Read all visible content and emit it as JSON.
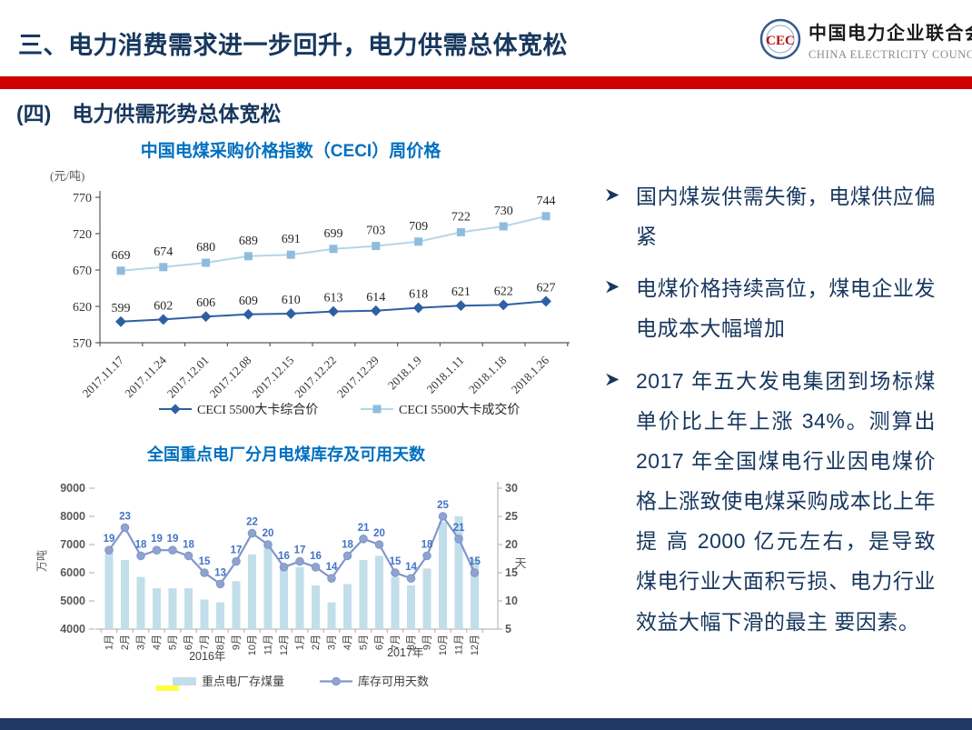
{
  "header": {
    "title": "三、电力消费需求进一步回升，电力供需总体宽松",
    "logo": {
      "monogram": "CEC",
      "org_cn": "中国电力企业联合会",
      "org_en": "CHINA ELECTRICITY COUNCIL"
    }
  },
  "section_heading": "(四)　电力供需形势总体宽松",
  "bullets": [
    "国内煤炭供需失衡，电煤供应偏紧",
    "电煤价格持续高位，煤电企业发电成本大幅增加",
    "2017 年五大发电集团到场标煤单价比上年上涨 34%。测算出2017 年全国煤电行业因电煤价格上涨致使电煤采购成本比上年提 高 2000 亿元左右，是导致煤电行业大面积亏损、电力行业效益大幅下滑的最主 要因素。"
  ],
  "colors": {
    "navy": "#17375E",
    "red": "#CE0000",
    "chart_title_blue": "#0070C0",
    "axis_gray": "#595959",
    "data_label_blue": "#4472C4",
    "bottom_band": "#1F3864",
    "highlight_yellow": "#FFFF3D"
  },
  "chart_data": [
    {
      "type": "line",
      "title": "中国电煤采购价格指数（CECI）周价格",
      "unit_label": "(元/吨)",
      "x": [
        "2017.11.17",
        "2017.11.24",
        "2017.12.01",
        "2017.12.08",
        "2017.12.15",
        "2017.12.22",
        "2017.12.29",
        "2018.1.9",
        "2018.1.11",
        "2018.1.18",
        "2018.1.26"
      ],
      "series": [
        {
          "name": "CECI 5500大卡综合价",
          "marker": "diamond",
          "color": "#2E5FA3",
          "line_color": "#2E5FA3",
          "values": [
            599,
            602,
            606,
            609,
            610,
            613,
            614,
            618,
            621,
            622,
            627
          ]
        },
        {
          "name": "CECI 5500大卡成交价",
          "marker": "square",
          "color": "#8FBCDD",
          "line_color": "#B3D6E8",
          "values": [
            669,
            674,
            680,
            689,
            691,
            699,
            703,
            709,
            722,
            730,
            744
          ]
        }
      ],
      "ylim": [
        570,
        770
      ],
      "yticks": [
        570,
        620,
        670,
        720,
        770
      ],
      "legend_position": "bottom",
      "grid": false
    },
    {
      "type": "combo-bar-line",
      "title": "全国重点电厂分月电煤库存及可用天数",
      "categories": [
        "1月",
        "2月",
        "3月",
        "4月",
        "5月",
        "6月",
        "7月",
        "8月",
        "9月",
        "10月",
        "11月",
        "12月",
        "1月",
        "2月",
        "3月",
        "4月",
        "5月",
        "6月",
        "7月",
        "8月",
        "9月",
        "10月",
        "11月",
        "12月"
      ],
      "year_groups": [
        "2016年",
        "2017年"
      ],
      "bar_series": {
        "name": "重点电厂存煤量",
        "color": "#C2DEEA",
        "values": [
          6700,
          6450,
          5850,
          5450,
          5450,
          5450,
          5050,
          4950,
          5700,
          6650,
          7000,
          6200,
          6200,
          5550,
          4950,
          5600,
          6450,
          6600,
          5850,
          5550,
          6150,
          7800,
          8000,
          6500
        ]
      },
      "line_series": {
        "name": "库存可用天数",
        "color": "#8096C9",
        "marker_fill": "#8FA3CF",
        "values": [
          19,
          23,
          18,
          19,
          19,
          18,
          15,
          13,
          17,
          22,
          20,
          16,
          17,
          16,
          14,
          18,
          21,
          20,
          15,
          14,
          18,
          25,
          21,
          15
        ]
      },
      "left_axis": {
        "label": "万吨",
        "min": 4000,
        "max": 9000,
        "ticks": [
          4000,
          5000,
          6000,
          7000,
          8000,
          9000
        ]
      },
      "right_axis": {
        "label": "天",
        "min": 5,
        "max": 30,
        "ticks": [
          5,
          10,
          15,
          20,
          25,
          30
        ]
      },
      "legend_position": "bottom",
      "grid": false
    }
  ]
}
